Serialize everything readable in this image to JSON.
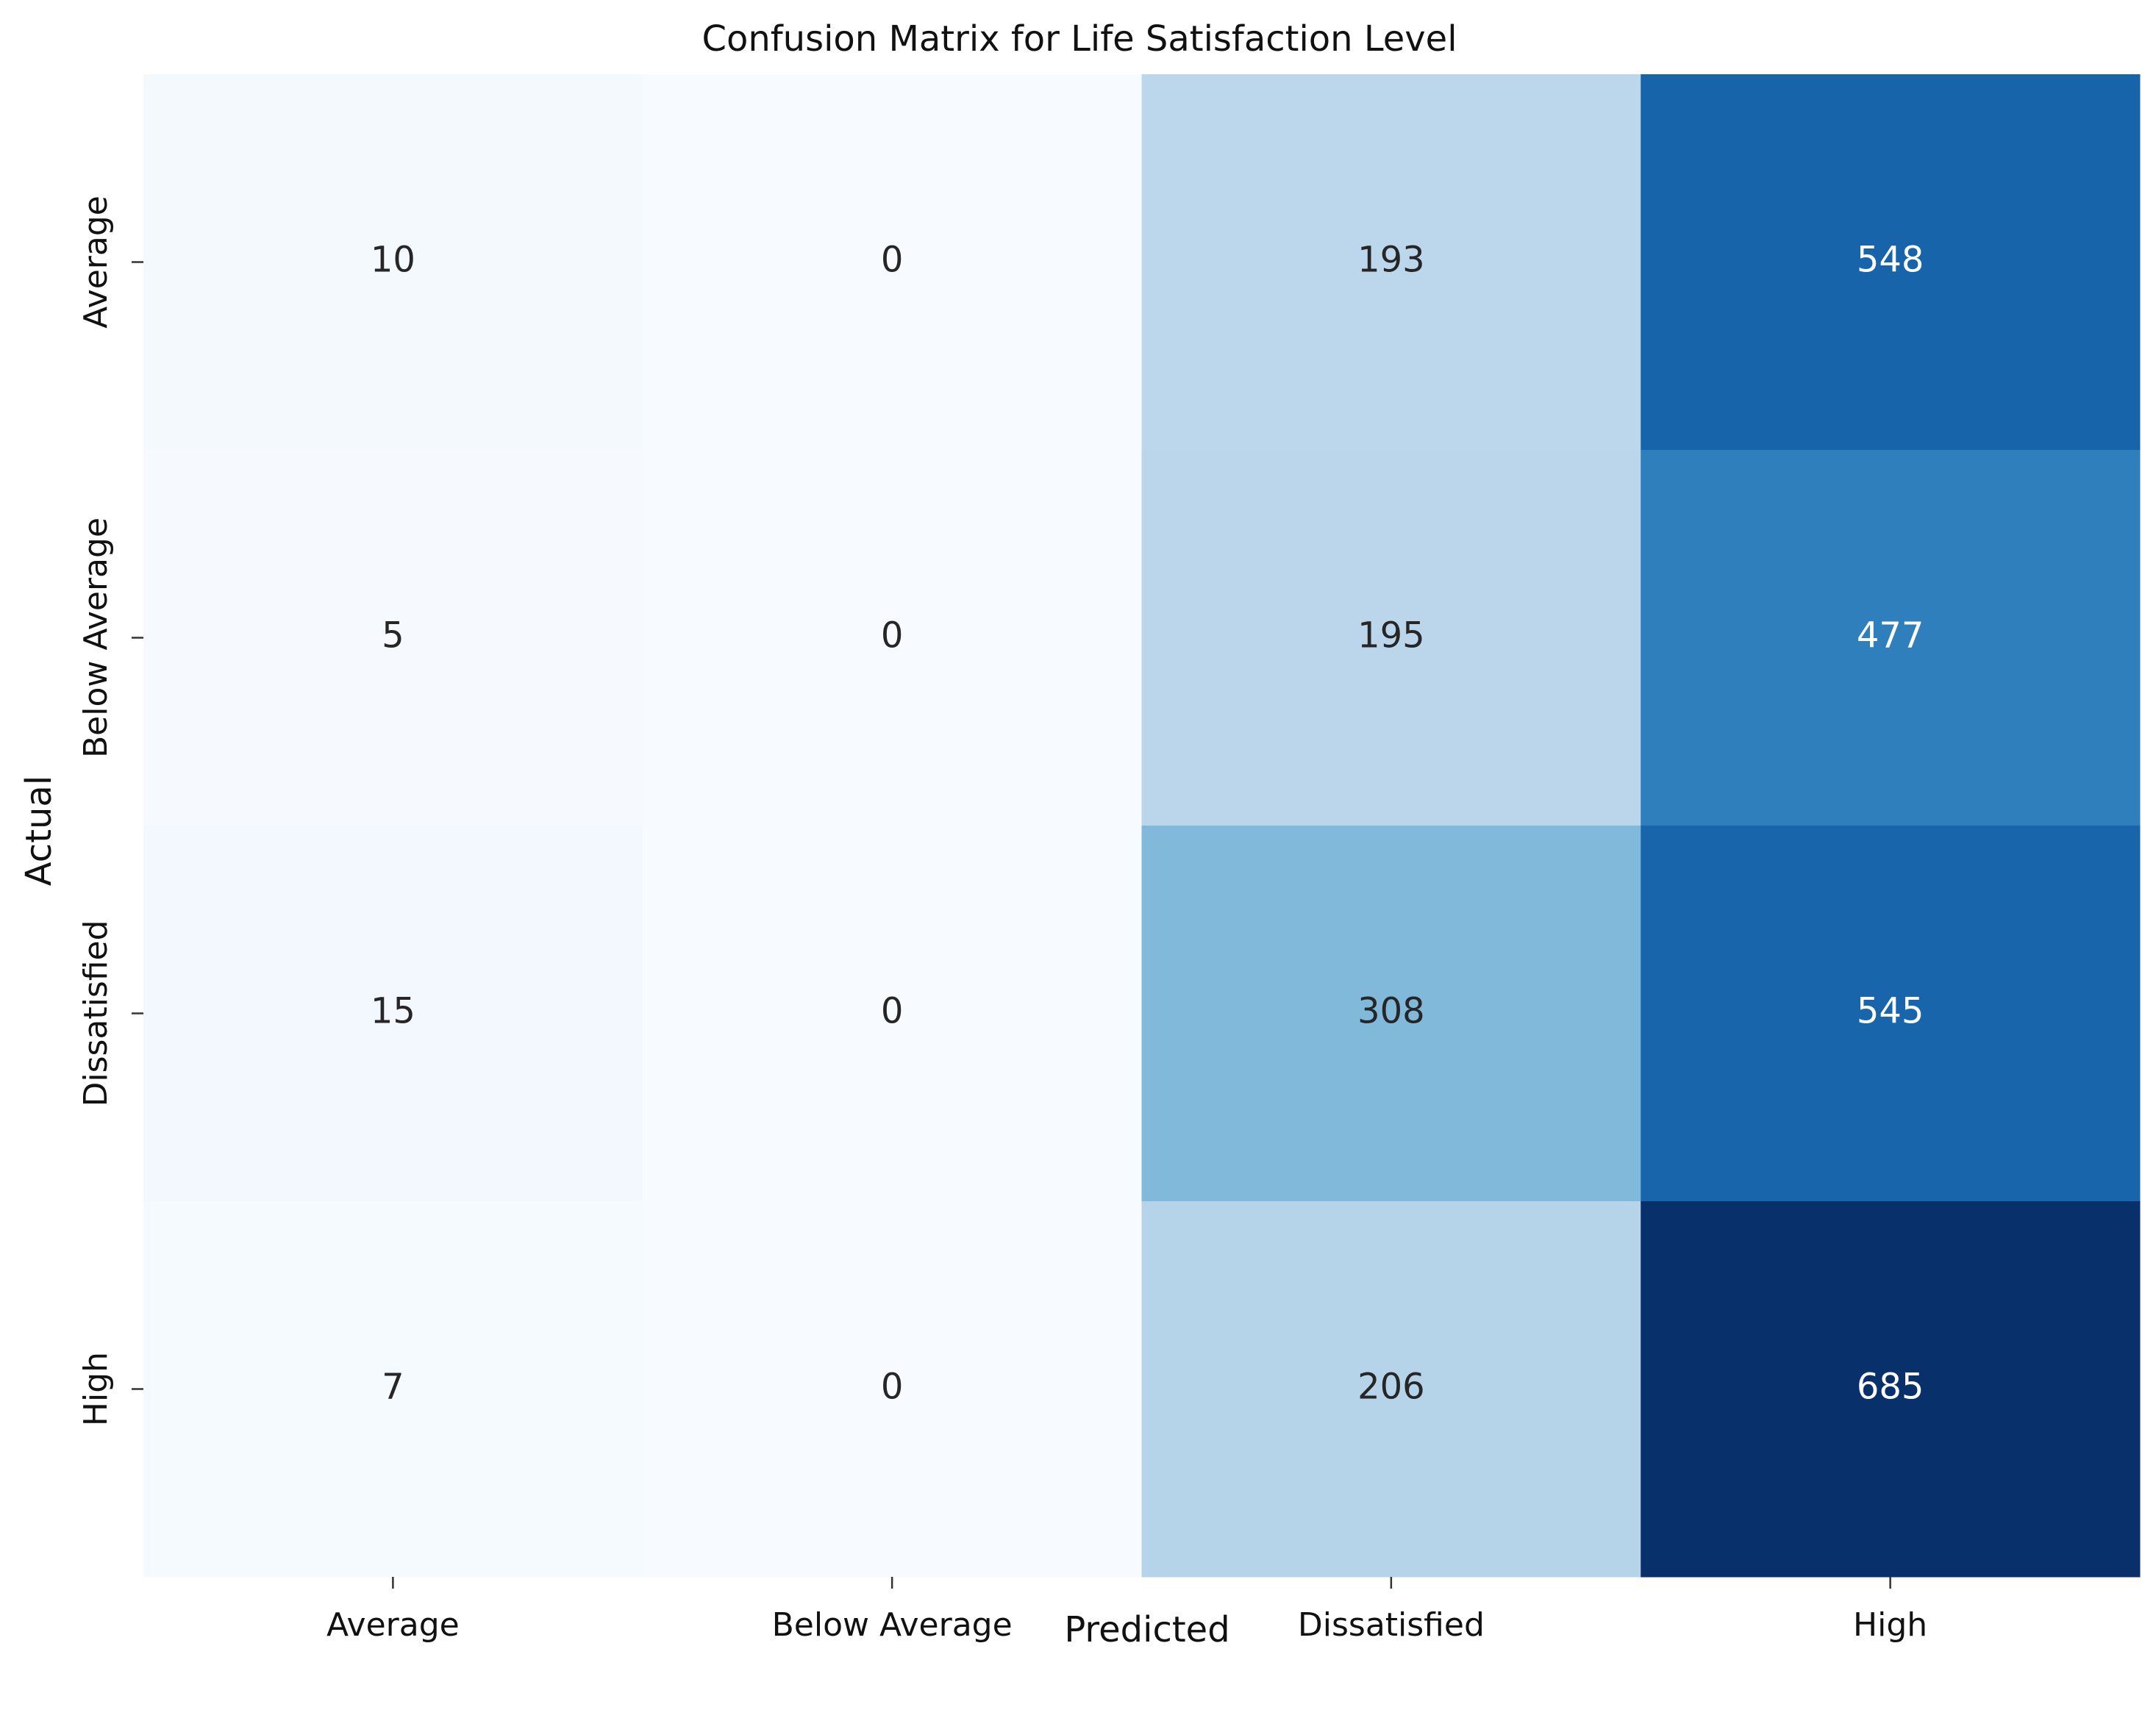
{
  "chart_data": {
    "type": "heatmap",
    "title": "Confusion Matrix for Life Satisfaction Level",
    "xlabel": "Predicted",
    "ylabel": "Actual",
    "x_categories": [
      "Average",
      "Below Average",
      "Dissatisfied",
      "High"
    ],
    "y_categories": [
      "Average",
      "Below Average",
      "Dissatisfied",
      "High"
    ],
    "values": [
      [
        10,
        0,
        193,
        548
      ],
      [
        5,
        0,
        195,
        477
      ],
      [
        15,
        0,
        308,
        545
      ],
      [
        7,
        0,
        206,
        685
      ]
    ],
    "colormap": "Blues",
    "value_range": [
      0,
      685
    ],
    "colorbar": false,
    "grid": false
  }
}
